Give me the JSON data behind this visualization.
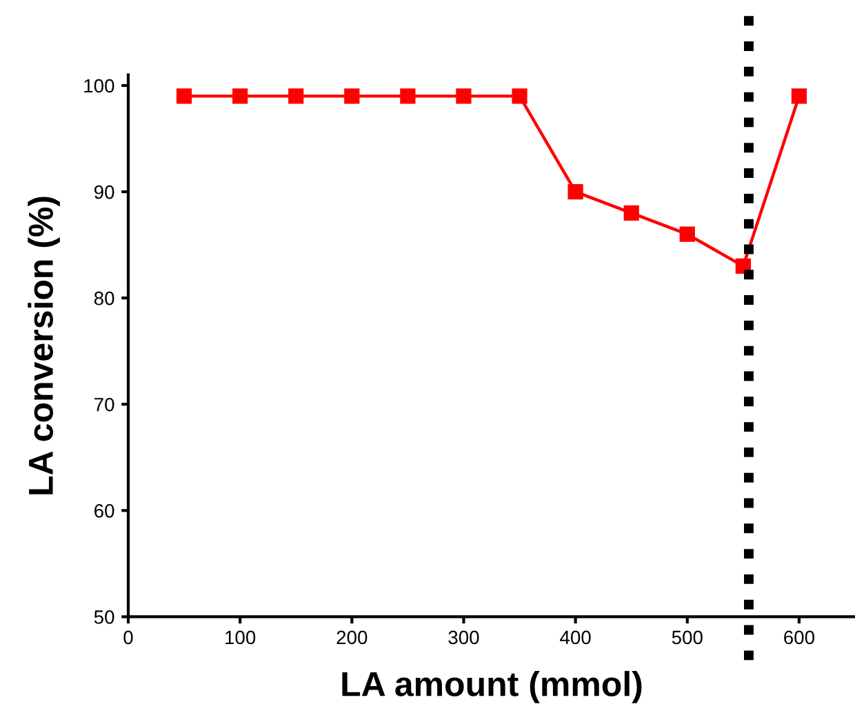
{
  "chart_data": {
    "type": "line",
    "xlabel": "LA amount (mmol)",
    "ylabel": "LA conversion (%)",
    "x": [
      50,
      100,
      150,
      200,
      250,
      300,
      350,
      400,
      450,
      500,
      550,
      600
    ],
    "series": [
      {
        "color": "#ff0000",
        "values": [
          99,
          99,
          99,
          99,
          99,
          99,
          99,
          90,
          88,
          86,
          83,
          99
        ]
      }
    ],
    "xlim": [
      0,
      650
    ],
    "xticks": [
      0,
      100,
      200,
      300,
      400,
      500,
      600
    ],
    "ylim": [
      50,
      101
    ],
    "yticks": [
      50,
      60,
      70,
      80,
      90,
      100
    ],
    "ref_lines": [
      {
        "axis": "x",
        "value": 555,
        "color": "#000000",
        "line_style": "dotted"
      }
    ],
    "marker": "square",
    "line_style": "solid",
    "grid": false,
    "legend": false
  }
}
